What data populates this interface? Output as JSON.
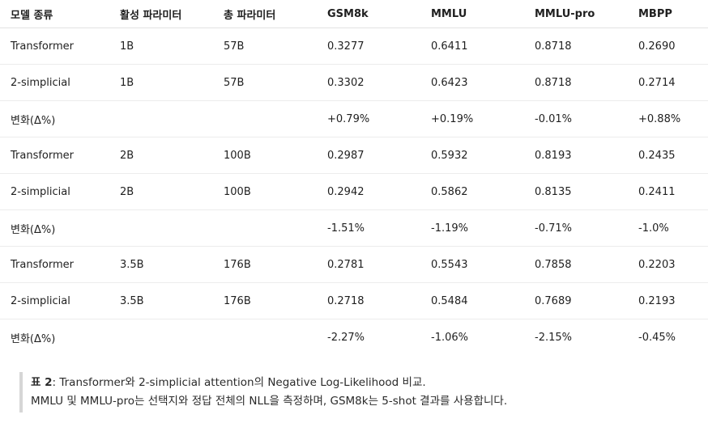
{
  "table": {
    "headers": [
      "모델 종류",
      "활성 파라미터",
      "총 파라미터",
      "GSM8k",
      "MMLU",
      "MMLU-pro",
      "MBPP"
    ],
    "rows": [
      [
        "Transformer",
        "1B",
        "57B",
        "0.3277",
        "0.6411",
        "0.8718",
        "0.2690"
      ],
      [
        "2-simplicial",
        "1B",
        "57B",
        "0.3302",
        "0.6423",
        "0.8718",
        "0.2714"
      ],
      [
        "변화(Δ%)",
        "",
        "",
        "+0.79%",
        "+0.19%",
        "-0.01%",
        "+0.88%"
      ],
      [
        "Transformer",
        "2B",
        "100B",
        "0.2987",
        "0.5932",
        "0.8193",
        "0.2435"
      ],
      [
        "2-simplicial",
        "2B",
        "100B",
        "0.2942",
        "0.5862",
        "0.8135",
        "0.2411"
      ],
      [
        "변화(Δ%)",
        "",
        "",
        "-1.51%",
        "-1.19%",
        "-0.71%",
        "-1.0%"
      ],
      [
        "Transformer",
        "3.5B",
        "176B",
        "0.2781",
        "0.5543",
        "0.7858",
        "0.2203"
      ],
      [
        "2-simplicial",
        "3.5B",
        "176B",
        "0.2718",
        "0.5484",
        "0.7689",
        "0.2193"
      ],
      [
        "변화(Δ%)",
        "",
        "",
        "-2.27%",
        "-1.06%",
        "-2.15%",
        "-0.45%"
      ]
    ]
  },
  "caption": {
    "label": "표 2",
    "line1": ": Transformer와 2-simplicial attention의 Negative Log-Likelihood 비교.",
    "line2": "MMLU 및 MMLU-pro는 선택지와 정답 전체의 NLL을 측정하며, GSM8k는 5-shot 결과를 사용합니다."
  }
}
